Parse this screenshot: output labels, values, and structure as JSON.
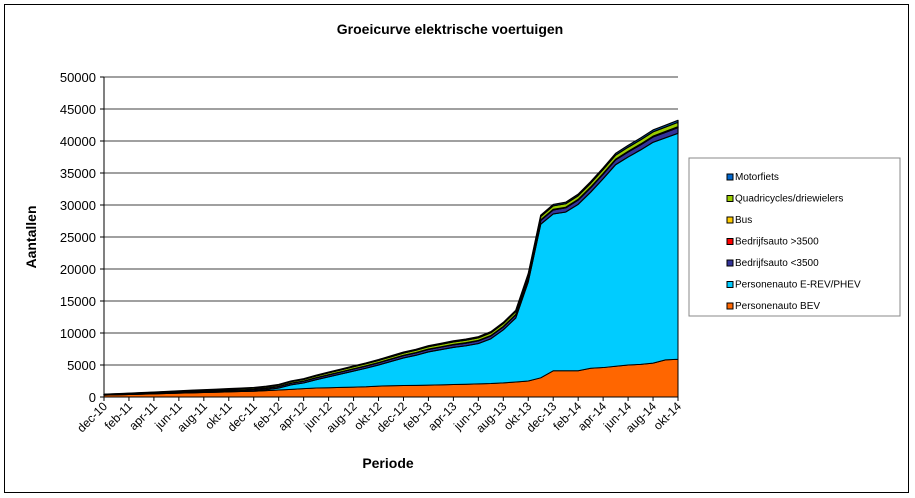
{
  "chart_data": {
    "type": "area",
    "stacked": true,
    "title": "Groeicurve elektrische voertuigen",
    "xlabel": "Periode",
    "ylabel": "Aantallen",
    "ylim": [
      0,
      50000
    ],
    "yticks": [
      0,
      5000,
      10000,
      15000,
      20000,
      25000,
      30000,
      35000,
      40000,
      45000,
      50000
    ],
    "grid": true,
    "legend_position": "right",
    "categories": [
      "dec-10",
      "jan-11",
      "feb-11",
      "mrt-11",
      "apr-11",
      "mei-11",
      "jun-11",
      "jul-11",
      "aug-11",
      "sep-11",
      "okt-11",
      "nov-11",
      "dec-11",
      "jan-12",
      "feb-12",
      "mrt-12",
      "apr-12",
      "mei-12",
      "jun-12",
      "jul-12",
      "aug-12",
      "sep-12",
      "okt-12",
      "nov-12",
      "dec-12",
      "jan-13",
      "feb-13",
      "mrt-13",
      "apr-13",
      "mei-13",
      "jun-13",
      "jul-13",
      "aug-13",
      "sep-13",
      "okt-13",
      "nov-13",
      "dec-13",
      "jan-14",
      "feb-14",
      "mrt-14",
      "apr-14",
      "mei-14",
      "jun-14",
      "jul-14",
      "aug-14",
      "sep-14",
      "okt-14"
    ],
    "xtick_labels": [
      "dec-10",
      "feb-11",
      "apr-11",
      "jun-11",
      "aug-11",
      "okt-11",
      "dec-11",
      "feb-12",
      "apr-12",
      "jun-12",
      "aug-12",
      "okt-12",
      "dec-12",
      "feb-13",
      "apr-13",
      "jun-13",
      "aug-13",
      "okt-13",
      "dec-13",
      "feb-14",
      "apr-14",
      "jun-14",
      "aug-14",
      "okt-14"
    ],
    "series": [
      {
        "name": "Personenauto BEV",
        "color": "#FF6600",
        "values": [
          300,
          350,
          400,
          450,
          500,
          550,
          600,
          650,
          700,
          750,
          800,
          850,
          900,
          1000,
          1100,
          1200,
          1300,
          1400,
          1450,
          1500,
          1550,
          1600,
          1700,
          1750,
          1800,
          1820,
          1850,
          1900,
          1950,
          2000,
          2050,
          2100,
          2200,
          2350,
          2500,
          3000,
          4100,
          4100,
          4100,
          4500,
          4600,
          4800,
          5000,
          5100,
          5300,
          5800,
          5900
        ]
      },
      {
        "name": "Personenauto E-REV/PHEV",
        "color": "#00CCFF",
        "values": [
          0,
          0,
          0,
          0,
          0,
          10,
          20,
          30,
          40,
          50,
          60,
          70,
          80,
          150,
          300,
          700,
          900,
          1300,
          1700,
          2100,
          2500,
          2900,
          3300,
          3800,
          4300,
          4700,
          5200,
          5500,
          5800,
          6000,
          6300,
          7000,
          8300,
          10000,
          15500,
          24000,
          24500,
          24800,
          26000,
          27500,
          29500,
          31500,
          32500,
          33500,
          34500,
          34700,
          35300
        ]
      },
      {
        "name": "Bedrijfsauto <3500",
        "color": "#333399",
        "values": [
          20,
          40,
          60,
          80,
          100,
          120,
          140,
          160,
          170,
          180,
          190,
          200,
          210,
          220,
          240,
          260,
          280,
          300,
          310,
          320,
          330,
          340,
          350,
          360,
          370,
          380,
          390,
          400,
          410,
          420,
          430,
          440,
          460,
          480,
          520,
          600,
          640,
          660,
          680,
          700,
          720,
          750,
          780,
          800,
          830,
          860,
          900
        ]
      },
      {
        "name": "Bedrijfsauto >3500",
        "color": "#FF0000",
        "values": [
          0,
          0,
          0,
          0,
          0,
          0,
          0,
          0,
          0,
          0,
          0,
          0,
          5,
          5,
          5,
          5,
          5,
          5,
          5,
          5,
          10,
          10,
          10,
          10,
          10,
          10,
          10,
          10,
          15,
          15,
          15,
          15,
          15,
          15,
          20,
          20,
          20,
          20,
          20,
          25,
          25,
          25,
          25,
          30,
          30,
          30,
          30
        ]
      },
      {
        "name": "Bus",
        "color": "#FFCC00",
        "values": [
          5,
          5,
          5,
          5,
          5,
          5,
          5,
          5,
          5,
          5,
          5,
          5,
          10,
          10,
          10,
          10,
          10,
          10,
          10,
          10,
          20,
          20,
          20,
          20,
          30,
          30,
          30,
          30,
          40,
          40,
          40,
          40,
          50,
          50,
          60,
          60,
          60,
          60,
          70,
          70,
          80,
          80,
          80,
          90,
          90,
          100,
          100
        ]
      },
      {
        "name": "Quadricycles/driewielers",
        "color": "#99CC00",
        "values": [
          80,
          90,
          100,
          110,
          120,
          130,
          140,
          150,
          160,
          170,
          180,
          190,
          200,
          210,
          220,
          240,
          260,
          280,
          300,
          310,
          320,
          330,
          340,
          350,
          360,
          370,
          380,
          390,
          400,
          410,
          420,
          430,
          450,
          470,
          500,
          520,
          550,
          560,
          580,
          600,
          620,
          640,
          650,
          660,
          680,
          690,
          700
        ]
      },
      {
        "name": "Motorfiets",
        "color": "#0066CC",
        "values": [
          20,
          25,
          30,
          35,
          40,
          45,
          50,
          55,
          60,
          65,
          70,
          75,
          80,
          85,
          90,
          95,
          100,
          105,
          110,
          115,
          120,
          125,
          130,
          135,
          140,
          145,
          150,
          155,
          160,
          165,
          170,
          175,
          180,
          190,
          200,
          210,
          220,
          230,
          240,
          250,
          260,
          270,
          280,
          285,
          290,
          295,
          300
        ]
      }
    ]
  }
}
